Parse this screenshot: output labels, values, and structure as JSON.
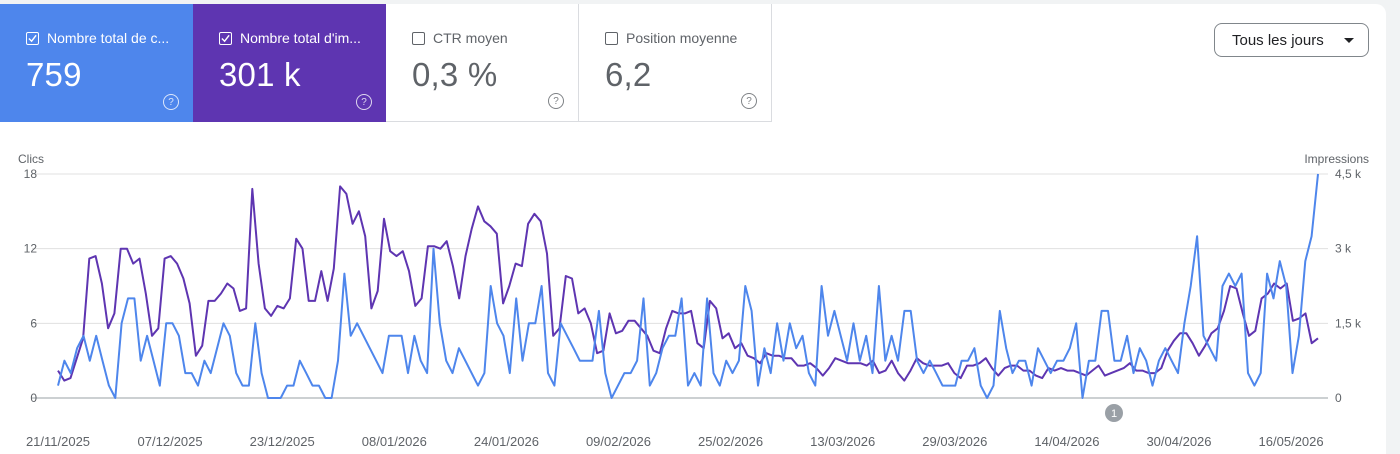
{
  "metrics": [
    {
      "label": "Nombre total de c...",
      "value": "759",
      "checked": true,
      "help_glyph": "?"
    },
    {
      "label": "Nombre total d'im...",
      "value": "301 k",
      "checked": true,
      "help_glyph": "?"
    },
    {
      "label": "CTR moyen",
      "value": "0,3 %",
      "checked": false,
      "help_glyph": "?"
    },
    {
      "label": "Position moyenne",
      "value": "6,2",
      "checked": false,
      "help_glyph": "?"
    }
  ],
  "date_range": {
    "label": "Tous les jours"
  },
  "colors": {
    "clicks": "#4e86ec",
    "impressions": "#5e35b1",
    "grid": "#e0e0e0"
  },
  "chart_data": {
    "type": "line",
    "left_axis": {
      "label": "Clics",
      "ticks": [
        "0",
        "6",
        "12",
        "18"
      ],
      "ylim": [
        0,
        18
      ]
    },
    "right_axis": {
      "label": "Impressions",
      "ticks": [
        "0",
        "1,5 k",
        "3 k",
        "4,5 k"
      ],
      "ylim": [
        0,
        4500
      ]
    },
    "x_ticks": [
      "21/11/2025",
      "07/12/2025",
      "23/12/2025",
      "08/01/2026",
      "24/01/2026",
      "09/02/2026",
      "25/02/2026",
      "13/03/2026",
      "29/03/2026",
      "14/04/2026",
      "30/04/2026",
      "16/05/2026"
    ],
    "annotation": {
      "label": "1",
      "date": "26/04/2026"
    },
    "series": [
      {
        "name": "Clics",
        "axis": "left",
        "values": [
          1,
          3,
          2,
          4,
          5,
          3,
          5,
          3,
          1,
          0,
          6,
          8,
          8,
          3,
          5,
          3,
          1,
          6,
          6,
          5,
          2,
          2,
          1,
          3,
          2,
          4,
          6,
          5,
          2,
          1,
          1,
          6,
          2,
          0,
          0,
          0,
          1,
          1,
          3,
          2,
          1,
          1,
          0,
          0,
          3,
          10,
          5,
          6,
          5,
          4,
          3,
          2,
          5,
          5,
          5,
          2,
          5,
          3,
          2,
          12,
          6,
          3,
          2,
          4,
          3,
          2,
          1,
          2,
          9,
          6,
          5,
          2,
          8,
          3,
          6,
          6,
          9,
          2,
          1,
          6,
          5,
          4,
          3,
          3,
          3,
          7,
          2,
          0,
          1,
          2,
          2,
          3,
          8,
          1,
          2,
          4,
          5,
          5,
          8,
          1,
          2,
          1,
          8,
          2,
          1,
          3,
          2,
          3,
          9,
          7,
          1,
          4,
          2,
          6,
          3,
          6,
          4,
          5,
          2,
          1,
          9,
          5,
          7,
          5,
          3,
          6,
          3,
          5,
          2,
          9,
          3,
          5,
          3,
          7,
          7,
          3,
          2,
          3,
          2,
          1,
          1,
          1,
          3,
          3,
          4,
          1,
          0,
          1,
          7,
          4,
          2,
          3,
          3,
          1,
          4,
          3,
          2,
          3,
          3,
          4,
          6,
          0,
          3,
          3,
          7,
          7,
          3,
          3,
          5,
          2,
          4,
          3,
          1,
          3,
          4,
          3,
          2,
          6,
          9,
          13,
          5,
          4,
          3,
          9,
          10,
          9,
          10,
          2,
          1,
          2,
          10,
          8,
          11,
          9,
          2,
          5,
          11,
          13,
          18
        ]
      },
      {
        "name": "Impressions",
        "axis": "right",
        "values": [
          550,
          350,
          400,
          800,
          1200,
          2800,
          2850,
          2300,
          1400,
          1700,
          3000,
          3000,
          2700,
          2800,
          2100,
          1250,
          1400,
          2800,
          2850,
          2700,
          2400,
          1900,
          850,
          1050,
          1950,
          1950,
          2100,
          2300,
          2200,
          1750,
          1800,
          4200,
          2700,
          1800,
          1650,
          1850,
          1800,
          2000,
          3200,
          3000,
          1950,
          1950,
          2550,
          1950,
          2600,
          4250,
          4100,
          3500,
          3750,
          3250,
          1800,
          2150,
          3600,
          2950,
          2850,
          2950,
          2550,
          1850,
          2000,
          3050,
          3050,
          3000,
          3150,
          2650,
          2000,
          2850,
          3400,
          3850,
          3550,
          3450,
          3300,
          1900,
          2250,
          2700,
          2650,
          3500,
          3700,
          3550,
          2900,
          1250,
          1400,
          2450,
          2400,
          1700,
          1800,
          1500,
          900,
          950,
          1700,
          1300,
          1350,
          1550,
          1550,
          1400,
          1250,
          950,
          900,
          1400,
          1750,
          1700,
          1700,
          1750,
          1100,
          1000,
          1950,
          1800,
          1200,
          1300,
          1000,
          1100,
          850,
          800,
          700,
          900,
          850,
          850,
          800,
          800,
          650,
          650,
          700,
          600,
          450,
          600,
          800,
          750,
          700,
          700,
          700,
          650,
          750,
          500,
          550,
          750,
          500,
          350,
          550,
          800,
          700,
          650,
          650,
          650,
          700,
          500,
          400,
          650,
          650,
          700,
          800,
          600,
          450,
          600,
          650,
          650,
          550,
          550,
          450,
          400,
          600,
          550,
          600,
          550,
          550,
          500,
          450,
          550,
          650,
          450,
          500,
          550,
          600,
          700,
          550,
          550,
          500,
          500,
          600,
          950,
          1150,
          1300,
          1300,
          1100,
          850,
          1050,
          1300,
          1400,
          1750,
          2250,
          2200,
          1700,
          1250,
          1350,
          2000,
          2100,
          2300,
          2200,
          2300,
          1550,
          1600,
          1700,
          1100,
          1200
        ]
      }
    ]
  }
}
